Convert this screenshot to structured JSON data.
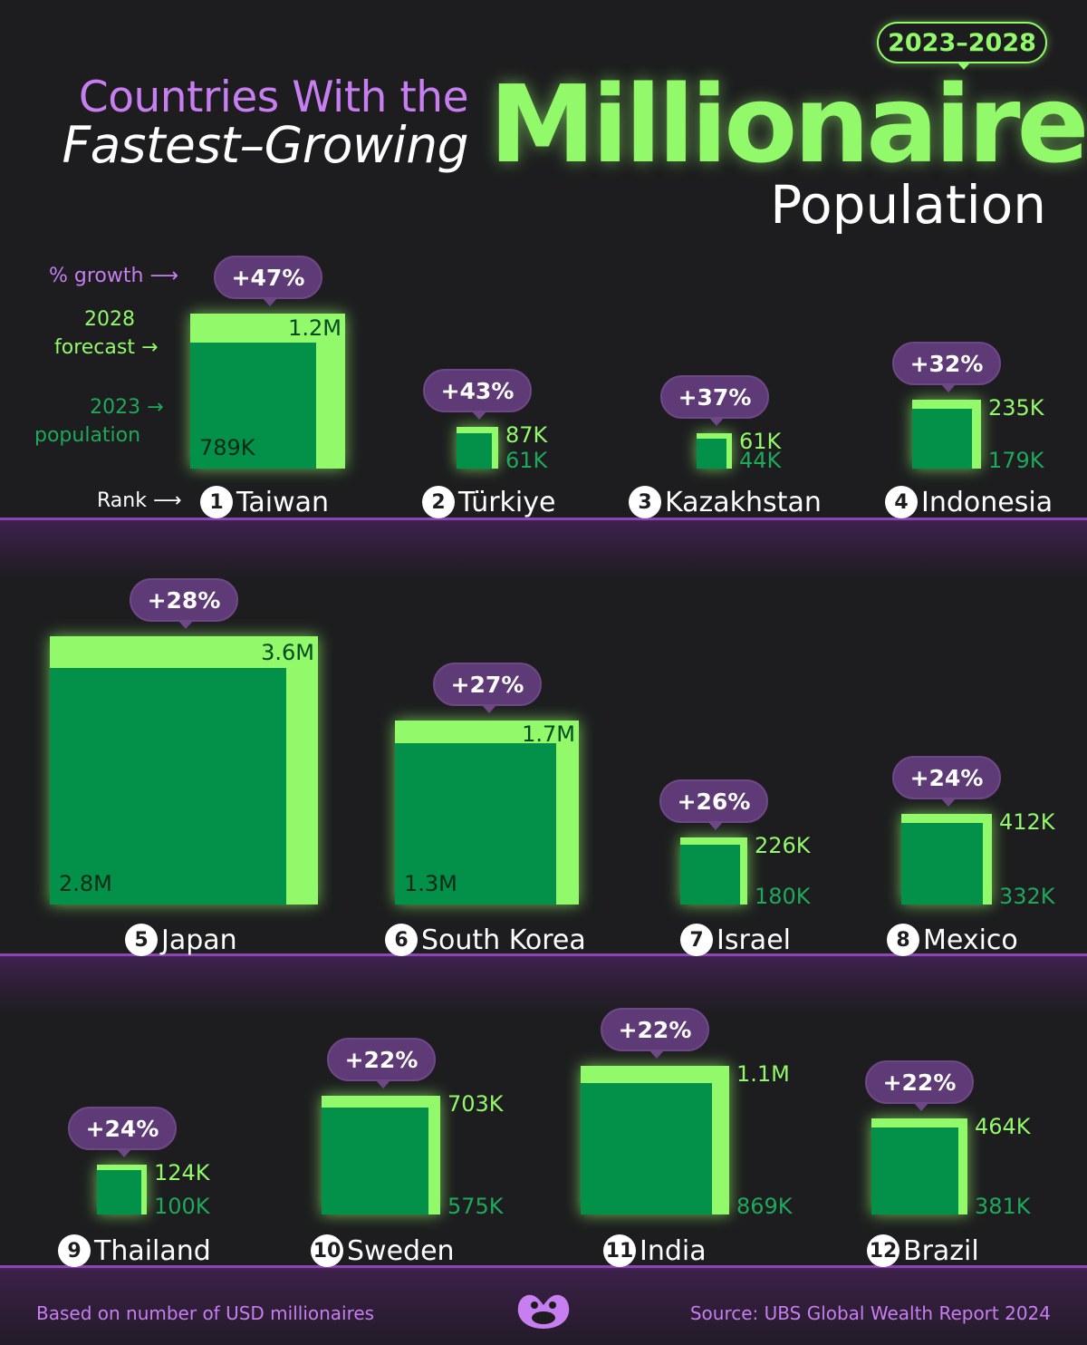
{
  "header": {
    "title_line1": "Countries With the",
    "title_line2": "Fastest–Growing",
    "title_big": "Millionaire",
    "title_line3": "Population",
    "years": "2023–2028"
  },
  "legend": {
    "growth": "% growth",
    "forecast_line1": "2028",
    "forecast_line2": "forecast",
    "population_line1": "2023",
    "population_line2": "population",
    "rank": "Rank"
  },
  "footer": {
    "note": "Based on number of USD millionaires",
    "source": "Source: UBS Global Wealth Report 2024",
    "logo_icon": "visual-capitalist-logo-icon"
  },
  "colors": {
    "forecast": "#92f96a",
    "population": "#039048",
    "growth_pill": "#5e3a76",
    "accent_pink": "#c77ef0",
    "background": "#1d1d1f"
  },
  "chart_data": {
    "type": "nested-square",
    "unit": "millionaires",
    "series": [
      {
        "name": "2028 forecast"
      },
      {
        "name": "2023 population"
      }
    ],
    "countries": [
      {
        "rank": "1",
        "name": "Taiwan",
        "growth": "+47%",
        "value_2028": 1200000,
        "value_2023": 789000,
        "label_2028": "1.2M",
        "label_2023": "789K"
      },
      {
        "rank": "2",
        "name": "Türkiye",
        "growth": "+43%",
        "value_2028": 87000,
        "value_2023": 61000,
        "label_2028": "87K",
        "label_2023": "61K"
      },
      {
        "rank": "3",
        "name": "Kazakhstan",
        "growth": "+37%",
        "value_2028": 61000,
        "value_2023": 44000,
        "label_2028": "61K",
        "label_2023": "44K"
      },
      {
        "rank": "4",
        "name": "Indonesia",
        "growth": "+32%",
        "value_2028": 235000,
        "value_2023": 179000,
        "label_2028": "235K",
        "label_2023": "179K"
      },
      {
        "rank": "5",
        "name": "Japan",
        "growth": "+28%",
        "value_2028": 3600000,
        "value_2023": 2800000,
        "label_2028": "3.6M",
        "label_2023": "2.8M"
      },
      {
        "rank": "6",
        "name": "South Korea",
        "growth": "+27%",
        "value_2028": 1700000,
        "value_2023": 1300000,
        "label_2028": "1.7M",
        "label_2023": "1.3M"
      },
      {
        "rank": "7",
        "name": "Israel",
        "growth": "+26%",
        "value_2028": 226000,
        "value_2023": 180000,
        "label_2028": "226K",
        "label_2023": "180K"
      },
      {
        "rank": "8",
        "name": "Mexico",
        "growth": "+24%",
        "value_2028": 412000,
        "value_2023": 332000,
        "label_2028": "412K",
        "label_2023": "332K"
      },
      {
        "rank": "9",
        "name": "Thailand",
        "growth": "+24%",
        "value_2028": 124000,
        "value_2023": 100000,
        "label_2028": "124K",
        "label_2023": "100K"
      },
      {
        "rank": "10",
        "name": "Sweden",
        "growth": "+22%",
        "value_2028": 703000,
        "value_2023": 575000,
        "label_2028": "703K",
        "label_2023": "575K"
      },
      {
        "rank": "11",
        "name": "India",
        "growth": "+22%",
        "value_2028": 1100000,
        "value_2023": 869000,
        "label_2028": "1.1M",
        "label_2023": "869K"
      },
      {
        "rank": "12",
        "name": "Brazil",
        "growth": "+22%",
        "value_2028": 464000,
        "value_2023": 381000,
        "label_2028": "464K",
        "label_2023": "381K"
      }
    ]
  }
}
